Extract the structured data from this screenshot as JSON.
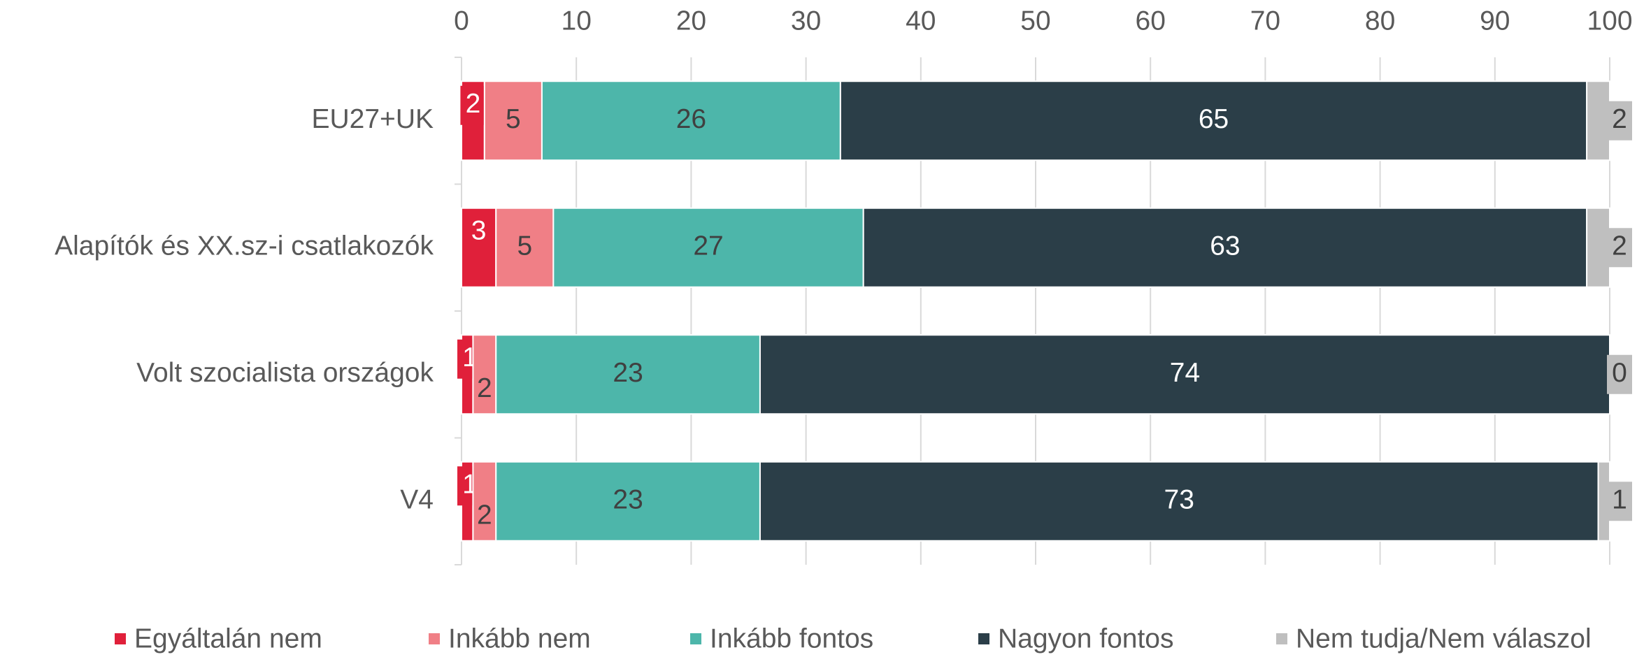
{
  "chart_data": {
    "type": "stacked-bar-horizontal",
    "categories": [
      "EU27+UK",
      "Alapítók és XX.sz-i csatlakozók",
      "Volt szocialista országok",
      "V4"
    ],
    "series": [
      {
        "name": "Egyáltalán nem",
        "color": "#e0203a",
        "values": [
          2,
          3,
          1,
          1
        ]
      },
      {
        "name": "Inkább nem",
        "color": "#f07f86",
        "values": [
          5,
          5,
          2,
          2
        ]
      },
      {
        "name": "Inkább fontos",
        "color": "#4db6aa",
        "values": [
          26,
          27,
          23,
          23
        ]
      },
      {
        "name": "Nagyon fontos",
        "color": "#2b3e48",
        "values": [
          65,
          63,
          74,
          73
        ]
      },
      {
        "name": "Nem tudja/Nem válaszol",
        "color": "#bfbfbf",
        "values": [
          2,
          2,
          0,
          1
        ]
      }
    ],
    "xlim": [
      0,
      100
    ],
    "xticks": [
      0,
      10,
      20,
      30,
      40,
      50,
      60,
      70,
      80,
      90,
      100
    ],
    "grid": true,
    "legend": "bottom"
  }
}
